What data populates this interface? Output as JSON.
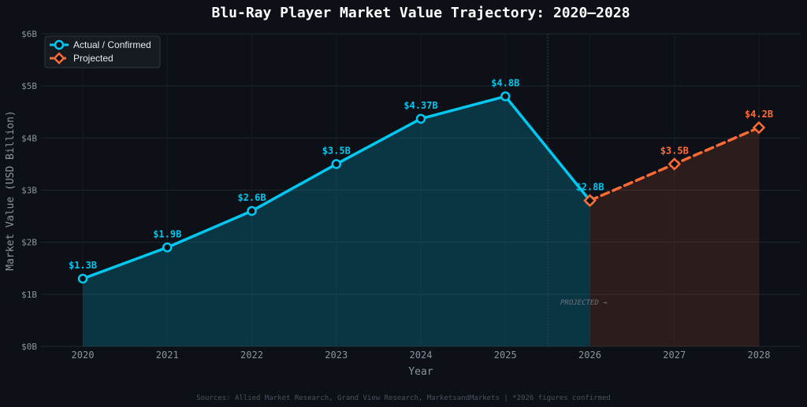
{
  "chart_data": {
    "type": "line",
    "title": "Blu-Ray Player Market Value Trajectory: 2020–2028",
    "xlabel": "Year",
    "ylabel": "Market Value (USD Billion)",
    "x": [
      "2020",
      "2021",
      "2022",
      "2023",
      "2024",
      "2025",
      "2026",
      "2027",
      "2028"
    ],
    "ylim": [
      0,
      6
    ],
    "yticks": [
      0,
      1,
      2,
      3,
      4,
      5,
      6
    ],
    "ytick_labels": [
      "$0B",
      "$1B",
      "$2B",
      "$3B",
      "$4B",
      "$5B",
      "$6B"
    ],
    "grid": true,
    "legend_position": "top-left",
    "series": [
      {
        "name": "Actual / Confirmed",
        "color": "#00c8f0",
        "style": "solid",
        "marker": "circle",
        "x": [
          "2020",
          "2021",
          "2022",
          "2023",
          "2024",
          "2025",
          "2026"
        ],
        "values": [
          1.3,
          1.9,
          2.6,
          3.5,
          4.37,
          4.8,
          2.8
        ],
        "labels": [
          "$1.3B",
          "$1.9B",
          "$2.6B",
          "$3.5B",
          "$4.37B",
          "$4.8B",
          "$2.8B"
        ]
      },
      {
        "name": "Projected",
        "color": "#ff6b35",
        "style": "dashed",
        "marker": "diamond",
        "x": [
          "2026",
          "2027",
          "2028"
        ],
        "values": [
          2.8,
          3.5,
          4.2
        ],
        "labels": [
          "",
          "$3.5B",
          "$4.2B"
        ]
      }
    ],
    "annotation": "PROJECTED →",
    "source": "Sources: Allied Market Research, Grand View Research, MarketsandMarkets | *2026 figures confirmed"
  }
}
